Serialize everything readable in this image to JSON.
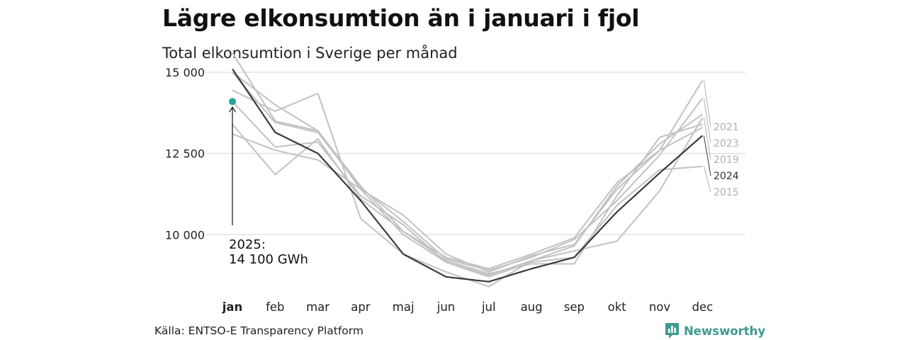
{
  "header": {
    "title": "Lägre elkonsumtion än i januari i fjol",
    "subtitle": "Total elkonsumtion i Sverige per månad"
  },
  "footer": {
    "source": "Källa: ENTSO-E Transparency Platform",
    "brand": "Newsworthy",
    "brand_icon": "bar-chart-speech-bubble-icon"
  },
  "colors": {
    "highlight_line": "#3a3a3a",
    "background_lines": "#c2c2c2",
    "current_point": "#26a69a",
    "label_gray": "#b0b0b0",
    "brand": "#3f9a8f"
  },
  "chart_data": {
    "type": "line",
    "x": [
      "jan",
      "feb",
      "mar",
      "apr",
      "maj",
      "jun",
      "jul",
      "aug",
      "sep",
      "okt",
      "nov",
      "dec"
    ],
    "highlighted_x": "jan",
    "ylim": [
      8500,
      15700
    ],
    "yticks": [
      10000,
      12500,
      15000
    ],
    "ytick_labels": [
      "10 000",
      "12 500",
      "15 000"
    ],
    "grid": "horizontal",
    "series": [
      {
        "name": "2024",
        "values": [
          15100,
          13150,
          12500,
          11050,
          9400,
          8700,
          8550,
          8950,
          9300,
          10700,
          11900,
          13050
        ],
        "highlight": true
      },
      {
        "name": "2021",
        "values": [
          15600,
          13500,
          13200,
          11400,
          10600,
          9400,
          8850,
          9350,
          9700,
          11400,
          12600,
          14750
        ]
      },
      {
        "name": "2023",
        "values": [
          15000,
          13450,
          13150,
          11450,
          10400,
          9250,
          8900,
          9300,
          9850,
          11050,
          12450,
          14200
        ]
      },
      {
        "name": "2019",
        "values": [
          14450,
          13800,
          14350,
          10500,
          9400,
          8850,
          8400,
          9200,
          9500,
          9800,
          11350,
          13600
        ]
      },
      {
        "name": "2015",
        "values": [
          13100,
          12600,
          12300,
          11400,
          10000,
          9150,
          8700,
          9150,
          9300,
          10900,
          12000,
          12100
        ]
      },
      {
        "values": [
          14100,
          12700,
          12850,
          11200,
          10300,
          9150,
          8750,
          9200,
          9650,
          11500,
          12800,
          13700
        ]
      },
      {
        "values": [
          13400,
          11850,
          12950,
          11100,
          10100,
          9200,
          8800,
          9100,
          9100,
          11200,
          13000,
          13400
        ]
      },
      {
        "values": [
          15000,
          14000,
          13200,
          11500,
          10100,
          9300,
          8950,
          9400,
          9900,
          11600,
          12600,
          13300
        ]
      }
    ],
    "annotation": {
      "text_line1": "2025:",
      "text_line2": "14 100 GWh",
      "x": "jan",
      "y": 14100
    }
  }
}
